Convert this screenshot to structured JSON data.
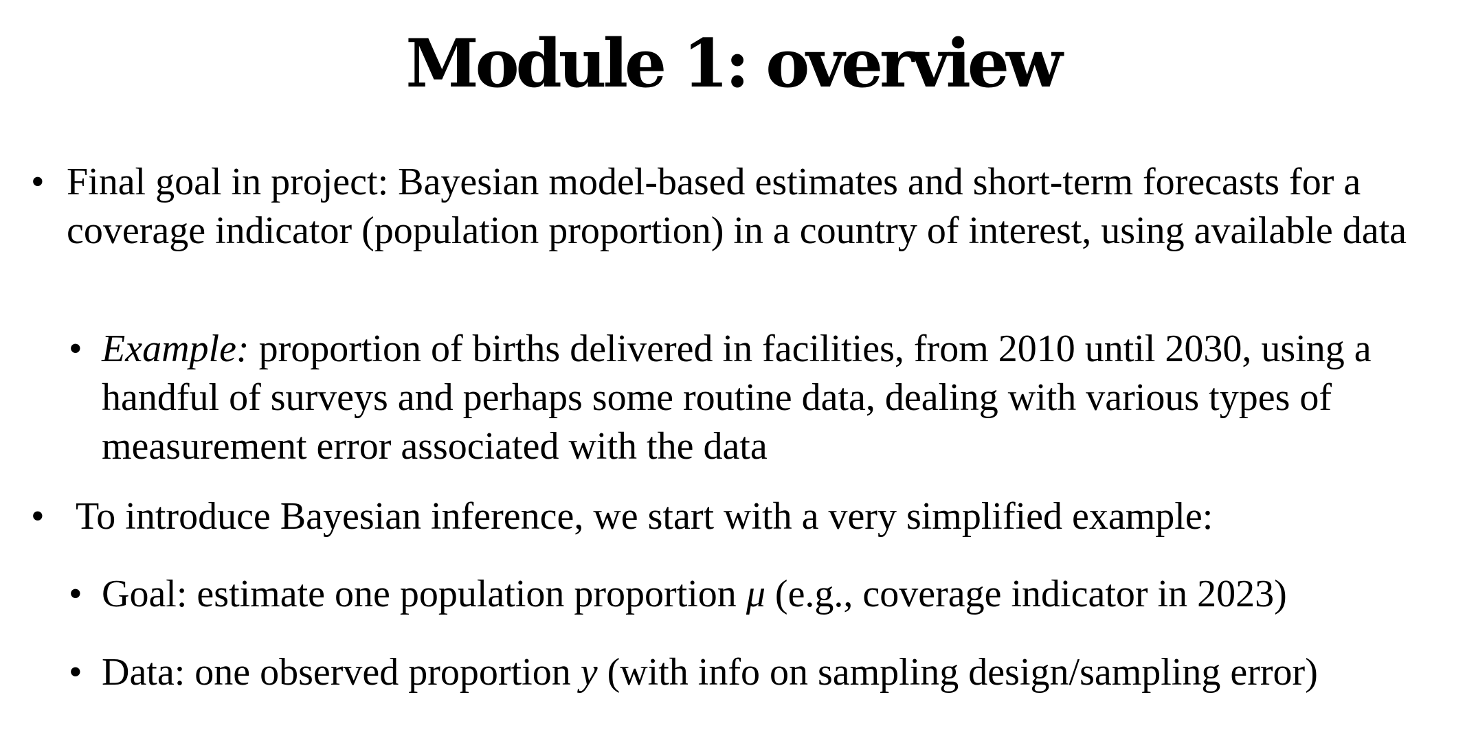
{
  "slide": {
    "title": "Module 1: overview",
    "bullets": [
      {
        "text": "Final goal in project: Bayesian model-based estimates and short-term forecasts for a coverage indicator (population proportion) in a country of interest, using available data",
        "sub": [
          {
            "lead": "Example:",
            "text": " proportion of births delivered in facilities, from 2010 until 2030, using a handful of surveys and perhaps some routine data, dealing with various types of measurement error associated with the data"
          }
        ]
      },
      {
        "text": "To introduce Bayesian inference, we start with a very simplified example:",
        "sub": [
          {
            "pre": "Goal: estimate one population proportion ",
            "symbol": "μ",
            "post": " (e.g., coverage indicator in 2023)"
          },
          {
            "pre": "Data: one observed proportion ",
            "symbol": "y",
            "post": " (with info on sampling design/sampling error)"
          }
        ]
      }
    ],
    "bullet_glyph": "•"
  }
}
